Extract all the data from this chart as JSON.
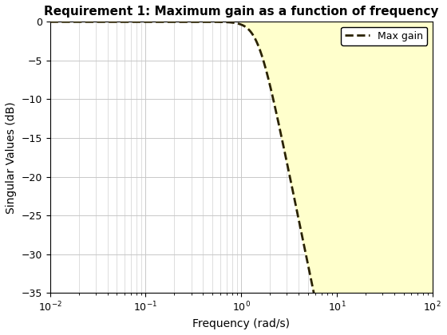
{
  "title": "Requirement 1: Maximum gain as a function of frequency",
  "xlabel": "Frequency (rad/s)",
  "ylabel": "Singular Values (dB)",
  "xlim": [
    0.01,
    100
  ],
  "ylim": [
    -35,
    0
  ],
  "yticks": [
    0,
    -5,
    -10,
    -15,
    -20,
    -25,
    -30,
    -35
  ],
  "background_color": "#ffffff",
  "fill_color": "#ffffcc",
  "fill_alpha": 1.0,
  "line_color": "#2a2200",
  "line_width": 2.0,
  "line_style": "--",
  "legend_label": "Max gain",
  "wc": 1.5,
  "n_order": 3,
  "freq_min_exp": -2,
  "freq_max_exp": 2,
  "n_points": 1000,
  "fill_x_start": 1.0,
  "grid_color": "#c8c8c8",
  "grid_linewidth": 0.7,
  "title_fontsize": 11,
  "label_fontsize": 10,
  "tick_fontsize": 9,
  "legend_fontsize": 9
}
